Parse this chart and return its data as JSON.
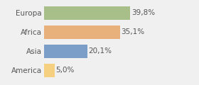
{
  "categories": [
    "America",
    "Asia",
    "Africa",
    "Europa"
  ],
  "values": [
    5.0,
    20.1,
    35.1,
    39.8
  ],
  "bar_colors": [
    "#f5d080",
    "#7b9ec9",
    "#e8b07a",
    "#a8bf8a"
  ],
  "labels": [
    "5,0%",
    "20,1%",
    "35,1%",
    "39,8%"
  ],
  "xlim": [
    0,
    55
  ],
  "bar_height": 0.72,
  "background_color": "#f0f0f0",
  "label_fontsize": 7.5,
  "category_fontsize": 7.5,
  "grid_color": "#ffffff",
  "label_padding": 0.5,
  "label_color": "#555555",
  "tick_color": "#555555"
}
